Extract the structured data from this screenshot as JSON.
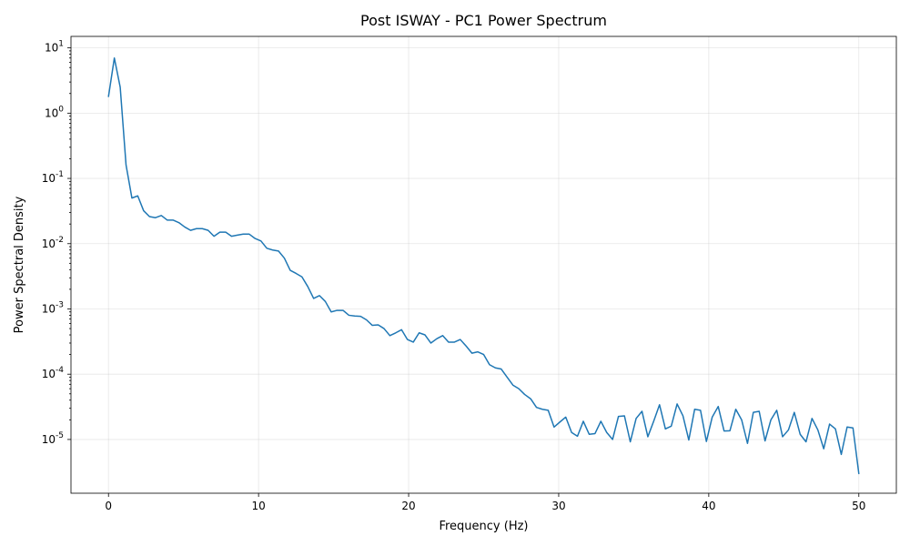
{
  "chart_data": {
    "type": "line",
    "title": "Post ISWAY - PC1 Power Spectrum",
    "xlabel": "Frequency (Hz)",
    "ylabel": "Power Spectral Density",
    "xlim": [
      -2.5,
      52.5
    ],
    "ylim": [
      1.5e-06,
      15
    ],
    "yscale": "log",
    "grid": true,
    "line_color": "#1f77b4",
    "x_ticks": [
      0,
      10,
      20,
      30,
      40,
      50
    ],
    "x_tick_labels": [
      "0",
      "10",
      "20",
      "30",
      "40",
      "50"
    ],
    "y_ticks": [
      1e-05,
      0.0001,
      0.001,
      0.01,
      0.1,
      1,
      10
    ],
    "y_tick_labels": [
      "10^{-5}",
      "10^{-4}",
      "10^{-3}",
      "10^{-2}",
      "10^{-1}",
      "10^{0}",
      "10^{1}"
    ],
    "series": [
      {
        "x": [
          0.0,
          0.39,
          0.78,
          1.17,
          1.56,
          1.95,
          2.34,
          2.73,
          3.13,
          3.52,
          3.91,
          4.3,
          4.69,
          5.08,
          5.47,
          5.86,
          6.25,
          6.64,
          7.03,
          7.42,
          7.81,
          8.2,
          8.59,
          8.98,
          9.38,
          9.77,
          10.16,
          10.55,
          10.94,
          11.33,
          11.72,
          12.11,
          12.5,
          12.89,
          13.28,
          13.67,
          14.06,
          14.45,
          14.84,
          15.23,
          15.63,
          16.02,
          16.41,
          16.8,
          17.19,
          17.58,
          17.97,
          18.36,
          18.75,
          19.14,
          19.53,
          19.92,
          20.31,
          20.7,
          21.09,
          21.48,
          21.88,
          22.27,
          22.66,
          23.05,
          23.44,
          23.83,
          24.22,
          24.61,
          25.0,
          25.39,
          25.78,
          26.17,
          26.56,
          26.95,
          27.34,
          27.73,
          28.13,
          28.52,
          28.91,
          29.3,
          29.69,
          30.08,
          30.47,
          30.86,
          31.25,
          31.64,
          32.03,
          32.42,
          32.81,
          33.2,
          33.59,
          33.98,
          34.38,
          34.77,
          35.16,
          35.55,
          35.94,
          36.33,
          36.72,
          37.11,
          37.5,
          37.89,
          38.28,
          38.67,
          39.06,
          39.45,
          39.84,
          40.23,
          40.63,
          41.02,
          41.41,
          41.8,
          42.19,
          42.58,
          42.97,
          43.36,
          43.75,
          44.14,
          44.53,
          44.92,
          45.31,
          45.7,
          46.09,
          46.48,
          46.88,
          47.27,
          47.66,
          48.05,
          48.44,
          48.83,
          49.22,
          49.61,
          50.0
        ],
        "y": [
          1.8,
          7.0,
          2.5,
          0.16,
          0.05,
          0.054,
          0.032,
          0.026,
          0.025,
          0.027,
          0.023,
          0.023,
          0.021,
          0.018,
          0.016,
          0.017,
          0.017,
          0.016,
          0.013,
          0.015,
          0.015,
          0.013,
          0.0135,
          0.014,
          0.014,
          0.012,
          0.011,
          0.0085,
          0.008,
          0.0077,
          0.006,
          0.0039,
          0.0035,
          0.0031,
          0.0022,
          0.00145,
          0.0016,
          0.0013,
          0.0009,
          0.00095,
          0.00095,
          0.0008,
          0.00078,
          0.00077,
          0.00068,
          0.00056,
          0.00057,
          0.0005,
          0.00039,
          0.00043,
          0.00048,
          0.00034,
          0.00031,
          0.00043,
          0.0004,
          0.0003,
          0.00035,
          0.00039,
          0.00031,
          0.00031,
          0.00034,
          0.00027,
          0.00021,
          0.00022,
          0.0002,
          0.00014,
          0.000125,
          0.00012,
          9e-05,
          6.8e-05,
          6e-05,
          4.9e-05,
          4.2e-05,
          3.1e-05,
          2.9e-05,
          2.8e-05,
          1.55e-05,
          1.85e-05,
          2.2e-05,
          1.28e-05,
          1.12e-05,
          1.9e-05,
          1.2e-05,
          1.23e-05,
          1.9e-05,
          1.28e-05,
          1e-05,
          2.25e-05,
          2.3e-05,
          9.2e-06,
          2.1e-05,
          2.7e-05,
          1.1e-05,
          1.9e-05,
          3.4e-05,
          1.45e-05,
          1.6e-05,
          3.5e-05,
          2.3e-05,
          9.8e-06,
          2.9e-05,
          2.8e-05,
          9.3e-06,
          2.2e-05,
          3.2e-05,
          1.35e-05,
          1.36e-05,
          2.9e-05,
          2e-05,
          8.7e-06,
          2.6e-05,
          2.7e-05,
          9.5e-06,
          2e-05,
          2.8e-05,
          1.1e-05,
          1.4e-05,
          2.6e-05,
          1.2e-05,
          9.2e-06,
          2.1e-05,
          1.4e-05,
          7.2e-06,
          1.72e-05,
          1.45e-05,
          5.9e-06,
          1.55e-05,
          1.5e-05,
          3e-06
        ]
      }
    ]
  }
}
